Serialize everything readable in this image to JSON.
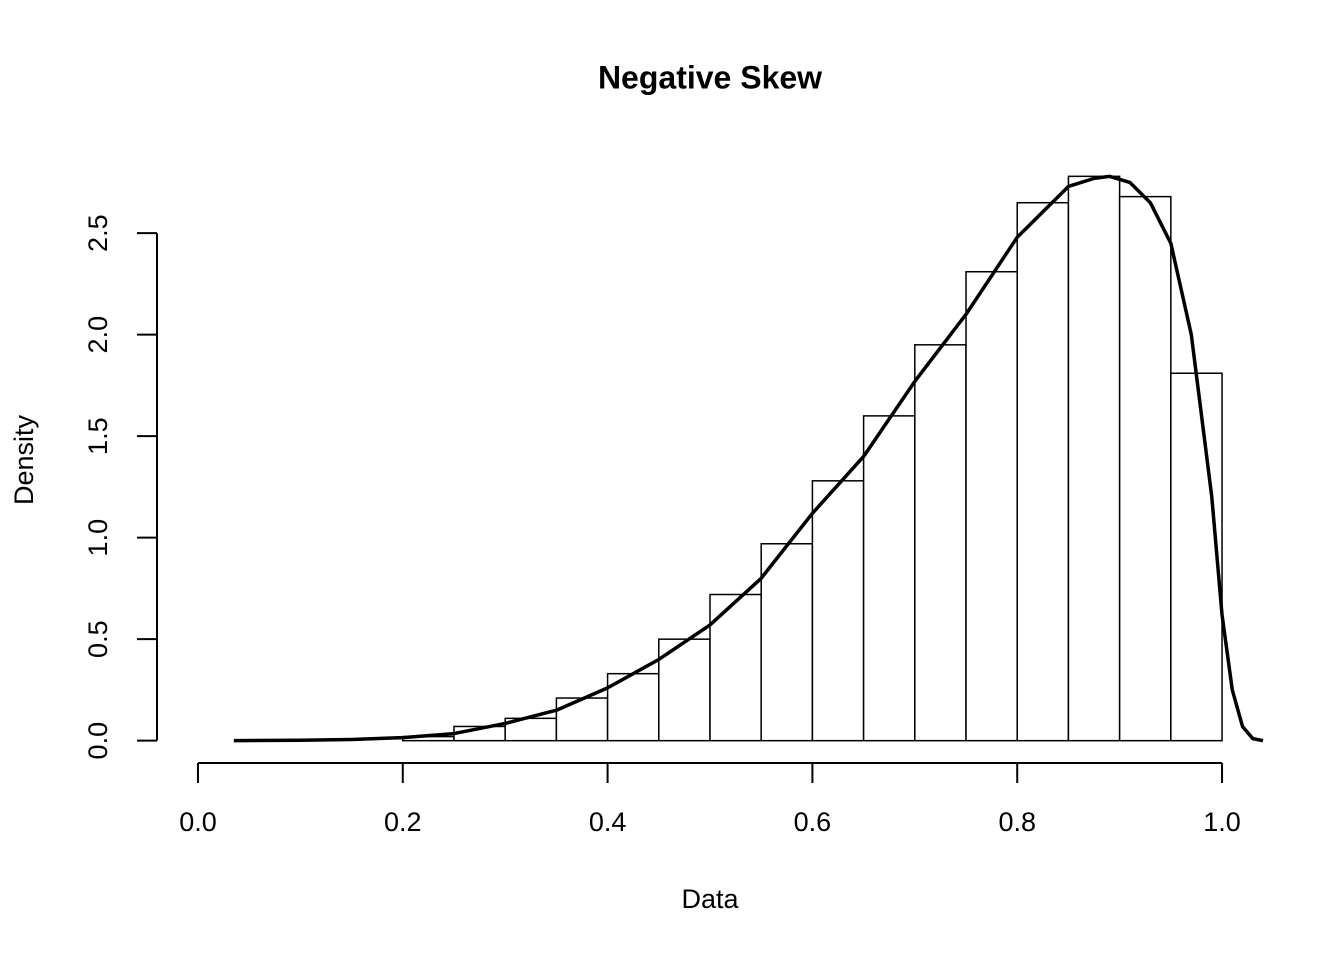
{
  "chart_data": {
    "type": "histogram",
    "title": "Negative Skew",
    "x_label": "Data",
    "y_label": "Density",
    "bins": [
      0.2,
      0.25,
      0.3,
      0.35,
      0.4,
      0.45,
      0.5,
      0.55,
      0.6,
      0.65,
      0.7,
      0.75,
      0.8,
      0.85,
      0.9,
      0.95,
      1.0
    ],
    "values": [
      0.02,
      0.07,
      0.11,
      0.21,
      0.33,
      0.5,
      0.72,
      0.97,
      1.28,
      1.6,
      1.95,
      2.31,
      2.65,
      2.78,
      2.68,
      1.81
    ],
    "bar_color": "#ffffff",
    "edge_color": "#000000",
    "density_curve": {
      "color": "#000000",
      "x": [
        0.035,
        0.1,
        0.15,
        0.2,
        0.25,
        0.3,
        0.35,
        0.4,
        0.45,
        0.5,
        0.55,
        0.6,
        0.65,
        0.7,
        0.75,
        0.8,
        0.85,
        0.875,
        0.89,
        0.91,
        0.93,
        0.95,
        0.97,
        0.99,
        1.0,
        1.01,
        1.02,
        1.03,
        1.04
      ],
      "y": [
        0.0,
        0.002,
        0.006,
        0.015,
        0.035,
        0.085,
        0.15,
        0.26,
        0.4,
        0.57,
        0.8,
        1.12,
        1.4,
        1.77,
        2.1,
        2.48,
        2.73,
        2.77,
        2.78,
        2.75,
        2.65,
        2.45,
        2.0,
        1.2,
        0.62,
        0.25,
        0.07,
        0.01,
        0.0
      ]
    },
    "xlim": [
      -0.04,
      1.04
    ],
    "ylim": [
      -0.11,
      2.89
    ],
    "xticks": [
      {
        "value": 0,
        "label": "0.0"
      },
      0.2,
      0.4,
      0.6,
      0.8,
      {
        "value": 1,
        "label": "1.0"
      }
    ],
    "yticks": [
      {
        "value": 0,
        "label": "0.0"
      },
      0.5,
      {
        "value": 1,
        "label": "1.0"
      },
      1.5,
      {
        "value": 2,
        "label": "2.0"
      },
      2.5
    ]
  }
}
